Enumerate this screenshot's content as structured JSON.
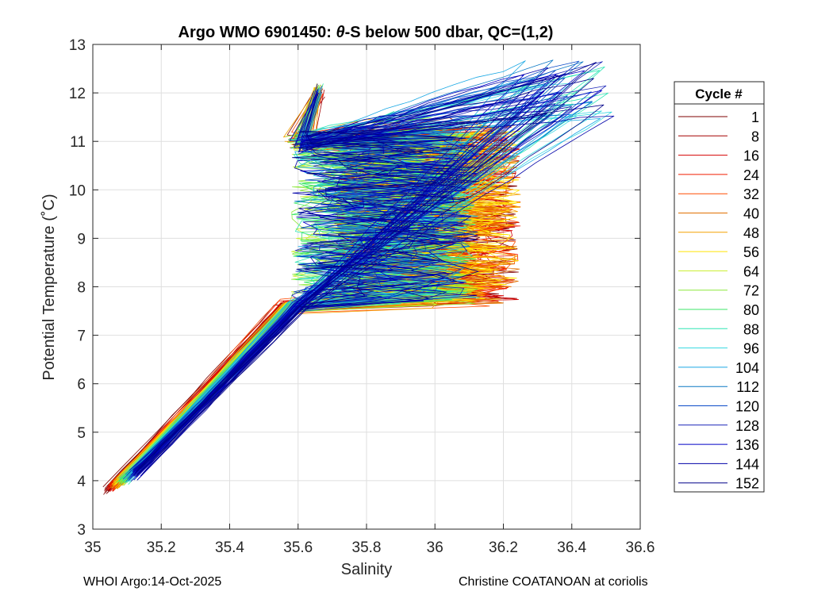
{
  "chart_data": {
    "type": "line",
    "title_prefix": "Argo WMO 6901450: ",
    "title_theta": "θ",
    "title_suffix": "-S below 500 dbar,  QC=(1,2)",
    "xlabel": "Salinity",
    "ylabel": "Potential Temperature (˚C)",
    "xlim": [
      35.0,
      36.6
    ],
    "ylim": [
      3,
      13
    ],
    "x_ticks": [
      "35",
      "35.2",
      "35.4",
      "35.6",
      "35.8",
      "36",
      "36.2",
      "36.4",
      "36.6"
    ],
    "y_ticks": [
      "3",
      "4",
      "5",
      "6",
      "7",
      "8",
      "9",
      "10",
      "11",
      "12",
      "13"
    ],
    "grid": true,
    "legend_title": "Cycle #",
    "legend_position": "right-outside",
    "series": [
      {
        "name": "1",
        "color": "#7f0000"
      },
      {
        "name": "8",
        "color": "#a30000"
      },
      {
        "name": "16",
        "color": "#d40000"
      },
      {
        "name": "24",
        "color": "#f01c00"
      },
      {
        "name": "32",
        "color": "#ff4a00"
      },
      {
        "name": "40",
        "color": "#e07000"
      },
      {
        "name": "48",
        "color": "#f4a100"
      },
      {
        "name": "56",
        "color": "#ffe400"
      },
      {
        "name": "64",
        "color": "#c8ee2a"
      },
      {
        "name": "72",
        "color": "#8ce83a"
      },
      {
        "name": "80",
        "color": "#3ee66a"
      },
      {
        "name": "88",
        "color": "#2ee6b4"
      },
      {
        "name": "96",
        "color": "#35d8e0"
      },
      {
        "name": "104",
        "color": "#1aa8e4"
      },
      {
        "name": "112",
        "color": "#0a78c4"
      },
      {
        "name": "120",
        "color": "#0c4cc8"
      },
      {
        "name": "128",
        "color": "#1a24b8"
      },
      {
        "name": "136",
        "color": "#0000c8"
      },
      {
        "name": "144",
        "color": "#0000a8"
      },
      {
        "name": "152",
        "color": "#000088"
      }
    ]
  },
  "footer": {
    "left": "WHOI Argo:14-Oct-2025",
    "right": "Christine COATANOAN at coriolis"
  }
}
